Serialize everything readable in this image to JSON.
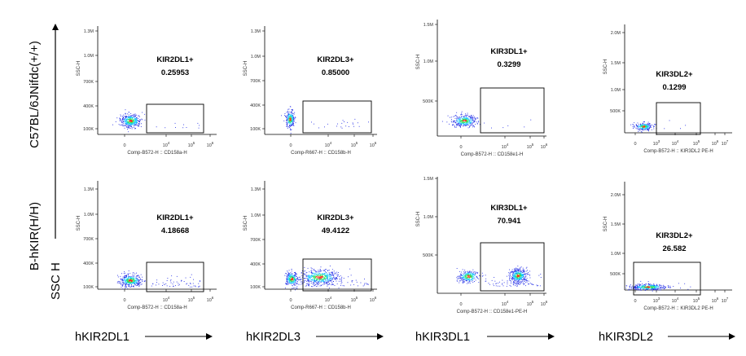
{
  "figure": {
    "y_arrow_label": "SSC H",
    "row_labels": [
      "C57BL/6JNifdc(+/+)",
      "B-hKIR(H/H)"
    ],
    "marker_labels": [
      "hKIR2DL1",
      "hKIR2DL3",
      "hKIR3DL1",
      "hKIR3DL2"
    ]
  },
  "colors": {
    "gate": "#000000",
    "dots_low": "#1f2ae6",
    "dots_mid": "#19c8ff",
    "dots_high": "#ff2a1a",
    "dots_core": "#2ee65a"
  },
  "chart_data": [
    {
      "type": "scatter",
      "row": "C57BL/6JNifdc(+/+)",
      "marker": "hKIR2DL1",
      "gate_name": "KIR2DL1+",
      "gate_value": "0.25953",
      "xlabel": "Comp-B572-H :: CD158a-H",
      "ylabel": "SSC-H",
      "x_ticks": [
        "0",
        "10^4",
        "10^5",
        "10^6"
      ],
      "y_ticks": [
        "100K",
        "400K",
        "700K",
        "1.0M",
        "1.3M"
      ],
      "positive_percent": 0.25953
    },
    {
      "type": "scatter",
      "row": "C57BL/6JNifdc(+/+)",
      "marker": "hKIR2DL3",
      "gate_name": "KIR2DL3+",
      "gate_value": "0.85000",
      "xlabel": "Comp-R667-H :: CD158b-H",
      "ylabel": "SSC-H",
      "x_ticks": [
        "0",
        "10^4",
        "10^5",
        "10^6"
      ],
      "y_ticks": [
        "100K",
        "400K",
        "700K",
        "1.0M",
        "1.3M"
      ],
      "positive_percent": 0.85
    },
    {
      "type": "scatter",
      "row": "C57BL/6JNifdc(+/+)",
      "marker": "hKIR3DL1",
      "gate_name": "KIR3DL1+",
      "gate_value": "0.3299",
      "xlabel": "Comp-B572-H :: CD158e1-H",
      "ylabel": "SSC-H",
      "x_ticks": [
        "0",
        "10^4",
        "10^5",
        "10^6"
      ],
      "y_ticks": [
        "500K",
        "1.0M",
        "1.5M"
      ],
      "positive_percent": 0.3299
    },
    {
      "type": "scatter",
      "row": "C57BL/6JNifdc(+/+)",
      "marker": "hKIR3DL2",
      "gate_name": "KIR3DL2+",
      "gate_value": "0.1299",
      "xlabel": "Comp-B572-H :: KIR3DL2 PE-H",
      "ylabel": "SSC-H",
      "x_ticks": [
        "0",
        "10^3",
        "10^4",
        "10^5",
        "10^6",
        "10^7"
      ],
      "y_ticks": [
        "500K",
        "1.0M",
        "1.5M",
        "2.0M"
      ],
      "positive_percent": 0.1299
    },
    {
      "type": "scatter",
      "row": "B-hKIR(H/H)",
      "marker": "hKIR2DL1",
      "gate_name": "KIR2DL1+",
      "gate_value": "4.18668",
      "xlabel": "Comp-B572-H :: CD158a-H",
      "ylabel": "SSC-H",
      "x_ticks": [
        "0",
        "10^4",
        "10^5",
        "10^6"
      ],
      "y_ticks": [
        "100K",
        "400K",
        "700K",
        "1.0M",
        "1.3M"
      ],
      "positive_percent": 4.18668
    },
    {
      "type": "scatter",
      "row": "B-hKIR(H/H)",
      "marker": "hKIR2DL3",
      "gate_name": "KIR2DL3+",
      "gate_value": "49.4122",
      "xlabel": "Comp-R667-H :: CD158b-H",
      "ylabel": "SSC-H",
      "x_ticks": [
        "0",
        "10^4",
        "10^5",
        "10^6"
      ],
      "y_ticks": [
        "100K",
        "400K",
        "700K",
        "1.0M",
        "1.3M"
      ],
      "positive_percent": 49.4122
    },
    {
      "type": "scatter",
      "row": "B-hKIR(H/H)",
      "marker": "hKIR3DL1",
      "gate_name": "KIR3DL1+",
      "gate_value": "70.941",
      "xlabel": "Comp-B572-H :: CD158e1-PE-H",
      "ylabel": "SSC-H",
      "x_ticks": [
        "0",
        "10^4",
        "10^5",
        "10^6"
      ],
      "y_ticks": [
        "500K",
        "1.0M",
        "1.5M"
      ],
      "positive_percent": 70.941
    },
    {
      "type": "scatter",
      "row": "B-hKIR(H/H)",
      "marker": "hKIR3DL2",
      "gate_name": "KIR3DL2+",
      "gate_value": "26.582",
      "xlabel": "Comp-B572-H :: KIR3DL2 PE-H",
      "ylabel": "SSC-H",
      "x_ticks": [
        "0",
        "10^3",
        "10^4",
        "10^5",
        "10^6",
        "10^7"
      ],
      "y_ticks": [
        "500K",
        "1.0M",
        "1.5M",
        "2.0M"
      ],
      "positive_percent": 26.582
    }
  ]
}
